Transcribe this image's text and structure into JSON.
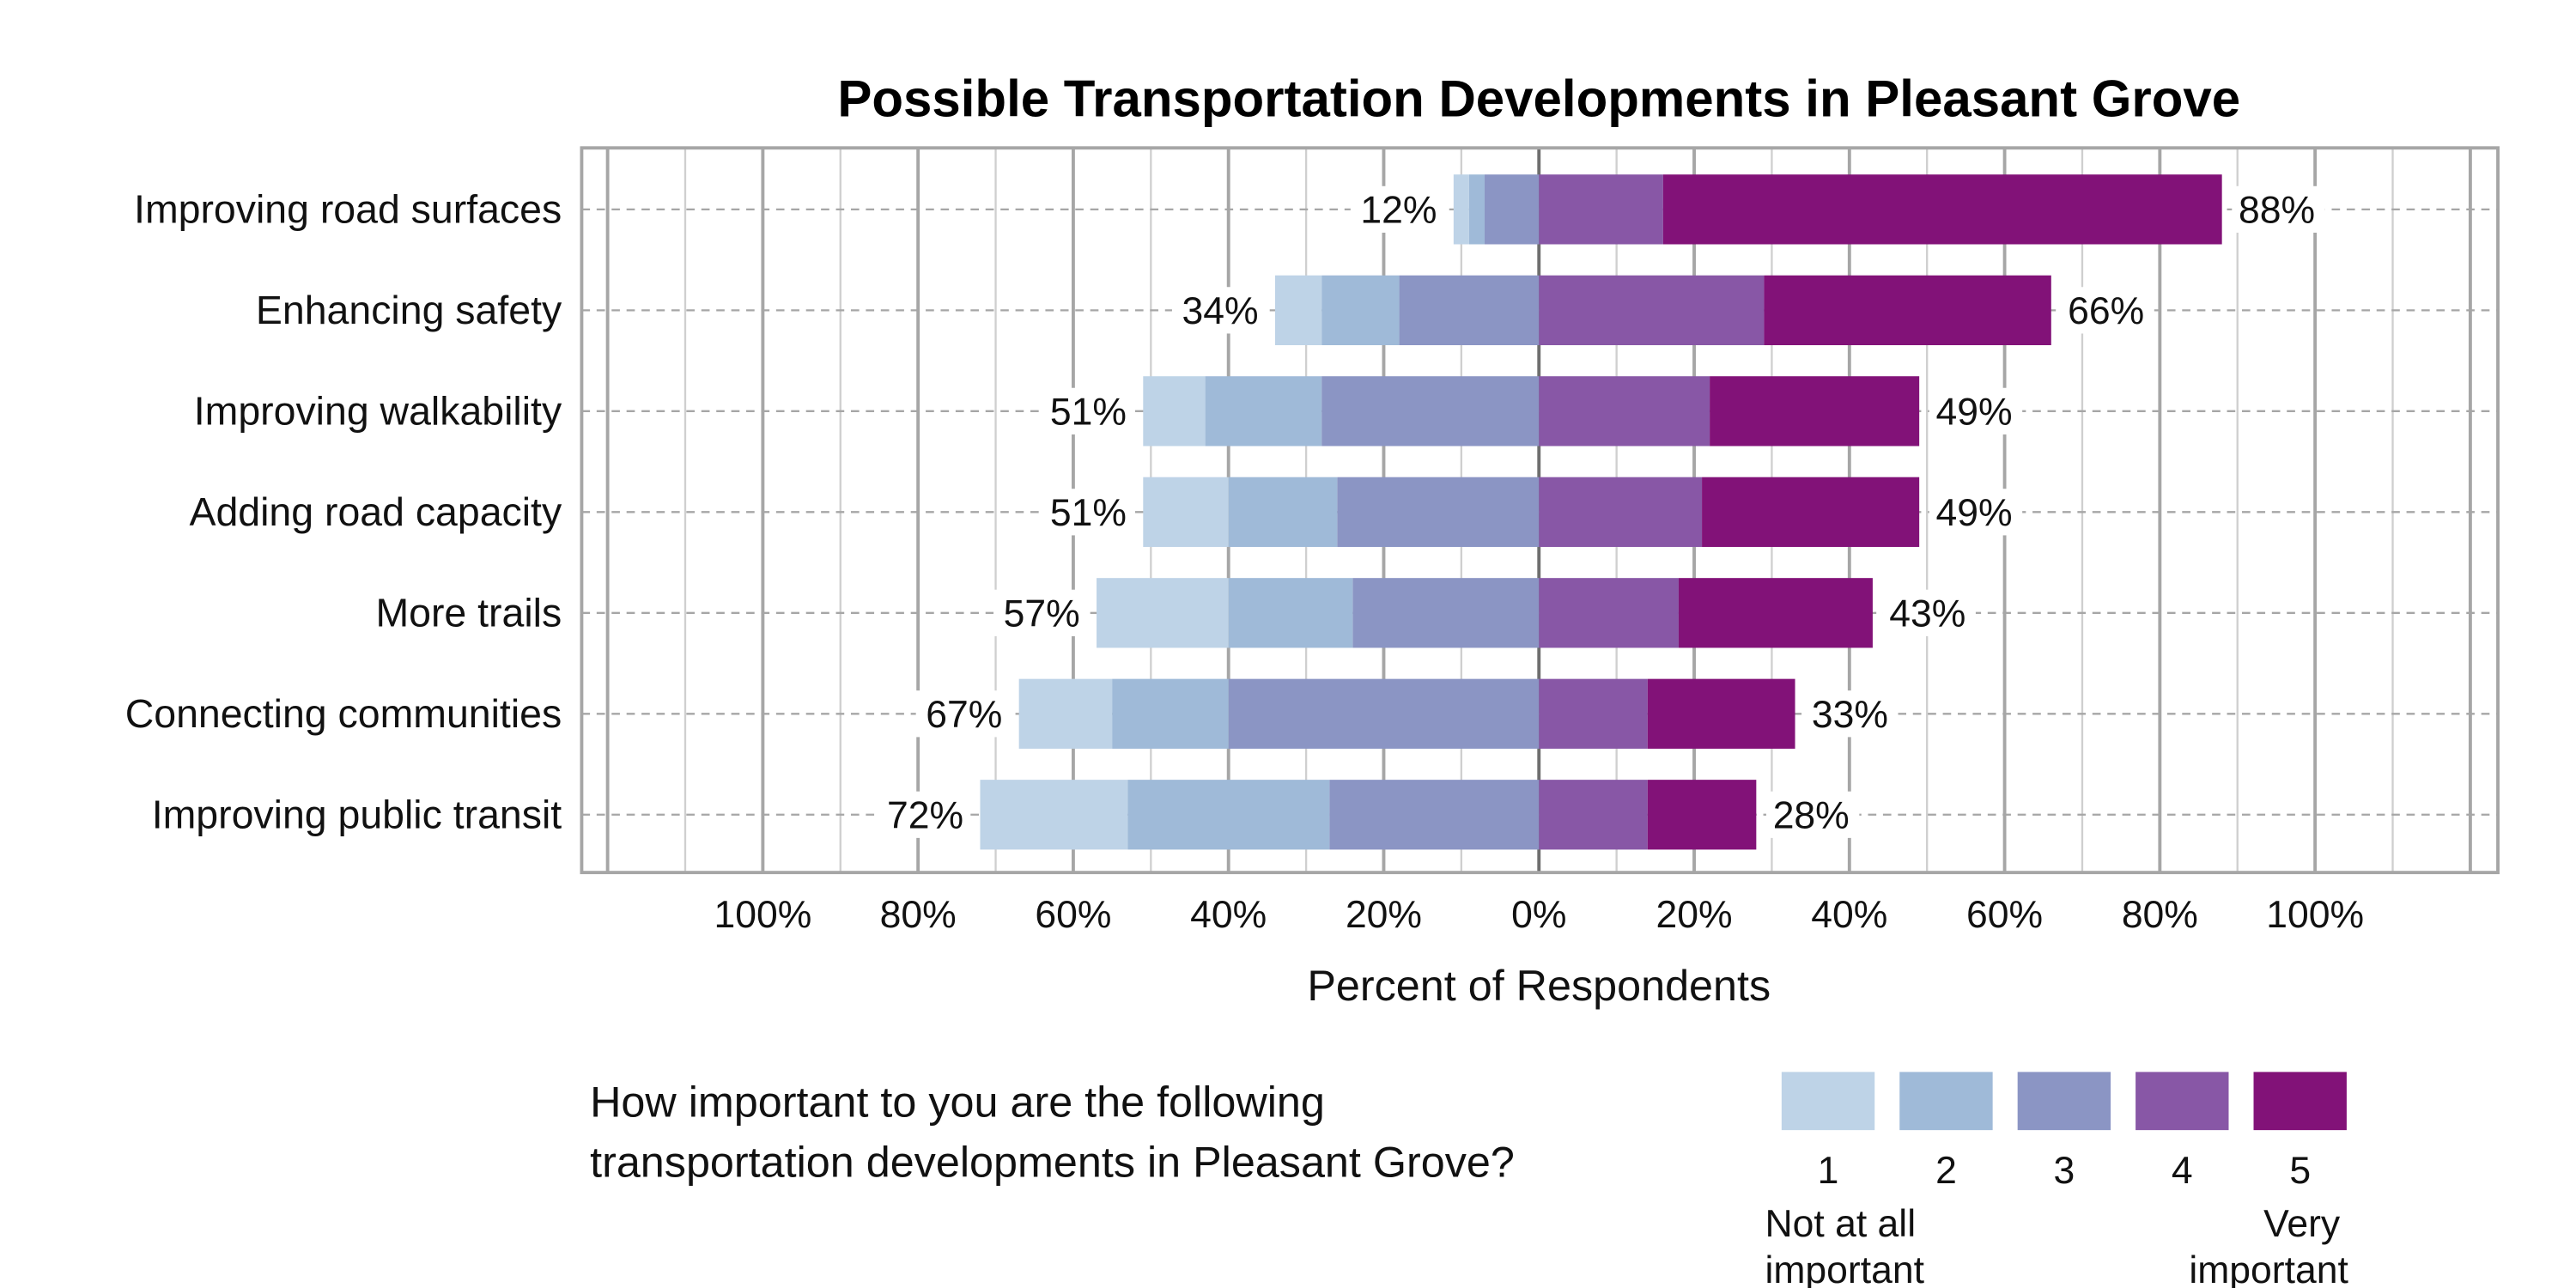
{
  "chart_data": {
    "type": "bar",
    "orientation": "horizontal",
    "stacked": "diverging",
    "title": "Possible Transportation Developments in Pleasant Grove",
    "xlabel": "Percent of Respondents",
    "ylabel": "",
    "xlim": [
      -100,
      100
    ],
    "x_ticks": [
      "100%",
      "80%",
      "60%",
      "40%",
      "20%",
      "0%",
      "20%",
      "40%",
      "60%",
      "80%",
      "100%"
    ],
    "grid": true,
    "legend_placement": "bottom-right",
    "categories": [
      "Improving road surfaces",
      "Enhancing safety",
      "Improving walkability",
      "Adding road capacity",
      "More trails",
      "Connecting communities",
      "Improving public transit"
    ],
    "series": [
      {
        "name": "1",
        "side": "negative",
        "color": "#BED3E7",
        "values": [
          2,
          6,
          8,
          11,
          17,
          12,
          19
        ]
      },
      {
        "name": "2",
        "side": "negative",
        "color": "#9FBAD8",
        "values": [
          2,
          10,
          15,
          14,
          16,
          15,
          26
        ]
      },
      {
        "name": "3",
        "side": "negative",
        "color": "#8B95C4",
        "values": [
          7,
          18,
          28,
          26,
          24,
          40,
          27
        ]
      },
      {
        "name": "4",
        "side": "positive",
        "color": "#8857A6",
        "values": [
          16,
          29,
          22,
          21,
          18,
          14,
          14
        ]
      },
      {
        "name": "5",
        "side": "positive",
        "color": "#821278",
        "values": [
          72,
          37,
          27,
          28,
          25,
          19,
          14
        ]
      }
    ],
    "negative_totals": [
      "12%",
      "34%",
      "51%",
      "51%",
      "57%",
      "67%",
      "72%"
    ],
    "positive_totals": [
      "88%",
      "66%",
      "49%",
      "49%",
      "43%",
      "33%",
      "28%"
    ],
    "legend": {
      "question_line1": "How important to you are the following",
      "question_line2": "transportation developments in Pleasant Grove?",
      "low_label_line1": "Not at all",
      "low_label_line2": "important",
      "high_label_line1": "Very",
      "high_label_line2": "important"
    }
  }
}
